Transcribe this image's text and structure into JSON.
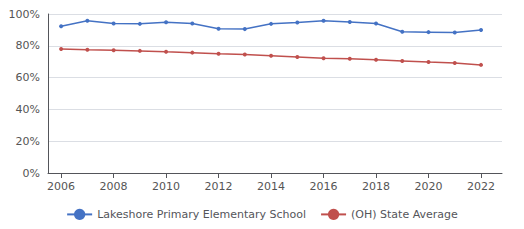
{
  "chart_data": {
    "type": "line",
    "x": [
      2006,
      2007,
      2008,
      2009,
      2010,
      2011,
      2012,
      2013,
      2014,
      2015,
      2016,
      2017,
      2018,
      2019,
      2020,
      2021,
      2022
    ],
    "series": [
      {
        "name": "Lakeshore Primary Elementary School",
        "color": "#4472C4",
        "marker": "circle",
        "values": [
          0.923,
          0.957,
          0.94,
          0.938,
          0.948,
          0.94,
          0.907,
          0.905,
          0.938,
          0.946,
          0.958,
          0.95,
          0.94,
          0.888,
          0.886,
          0.883,
          0.9
        ]
      },
      {
        "name": "(OH) State Average",
        "color": "#C0504D",
        "marker": "circle",
        "values": [
          0.78,
          0.775,
          0.772,
          0.768,
          0.762,
          0.757,
          0.75,
          0.745,
          0.738,
          0.73,
          0.722,
          0.718,
          0.712,
          0.705,
          0.698,
          0.692,
          0.68
        ]
      }
    ],
    "xlim": [
      2005.5,
      2022.8
    ],
    "xticks": [
      2006,
      2008,
      2010,
      2012,
      2014,
      2016,
      2018,
      2020,
      2022
    ],
    "ylim": [
      0,
      1.0
    ],
    "yticks": [
      {
        "value": 0.0,
        "label": "0%"
      },
      {
        "value": 0.2,
        "label": "20%"
      },
      {
        "value": 0.4,
        "label": "40%"
      },
      {
        "value": 0.6,
        "label": "60%"
      },
      {
        "value": 0.8,
        "label": "80%"
      },
      {
        "value": 1.0,
        "label": "100%"
      }
    ],
    "grid": true,
    "legend": "bottom"
  }
}
